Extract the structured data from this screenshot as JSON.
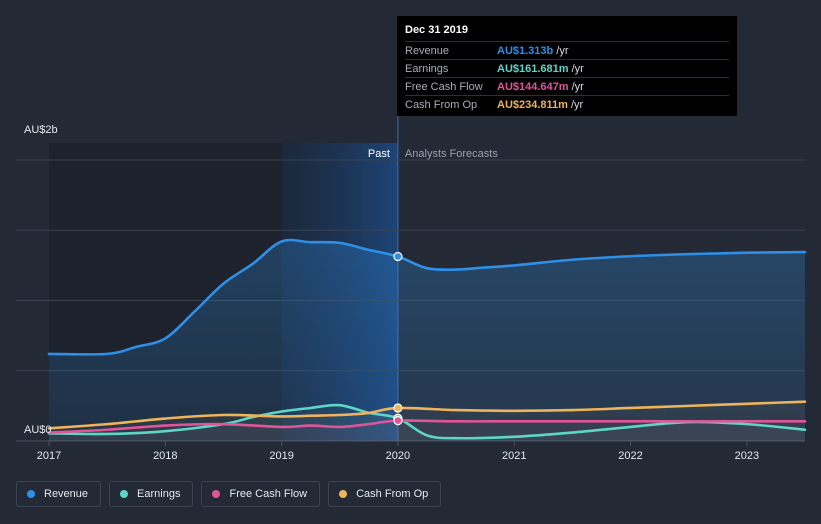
{
  "chart_data": {
    "type": "line",
    "y_axis": {
      "top_label": "AU$2b",
      "bottom_label": "AU$0",
      "ylim": [
        0,
        2.0
      ]
    },
    "x_axis": {
      "ticks": [
        "2017",
        "2018",
        "2019",
        "2020",
        "2021",
        "2022",
        "2023"
      ],
      "xlim": [
        2017.0,
        2023.5
      ]
    },
    "regions": {
      "past_label": "Past",
      "forecast_label": "Analysts Forecasts",
      "past_highlight": [
        2019.0,
        2020.0
      ],
      "split_at": 2020.0
    },
    "series": [
      {
        "name": "Revenue",
        "color": "#2f8fe6",
        "area": true,
        "points": [
          [
            2017.0,
            0.62
          ],
          [
            2017.5,
            0.62
          ],
          [
            2017.75,
            0.67
          ],
          [
            2018.0,
            0.73
          ],
          [
            2018.25,
            0.92
          ],
          [
            2018.5,
            1.12
          ],
          [
            2018.75,
            1.26
          ],
          [
            2019.0,
            1.42
          ],
          [
            2019.25,
            1.415
          ],
          [
            2019.5,
            1.41
          ],
          [
            2019.75,
            1.36
          ],
          [
            2020.0,
            1.313
          ],
          [
            2020.25,
            1.23
          ],
          [
            2020.5,
            1.22
          ],
          [
            2020.75,
            1.235
          ],
          [
            2021.0,
            1.25
          ],
          [
            2021.5,
            1.29
          ],
          [
            2022.0,
            1.315
          ],
          [
            2022.5,
            1.33
          ],
          [
            2023.0,
            1.34
          ],
          [
            2023.5,
            1.345
          ]
        ]
      },
      {
        "name": "Earnings",
        "color": "#5ed6c7",
        "area": false,
        "points": [
          [
            2017.0,
            0.055
          ],
          [
            2017.5,
            0.05
          ],
          [
            2018.0,
            0.07
          ],
          [
            2018.5,
            0.12
          ],
          [
            2018.75,
            0.17
          ],
          [
            2019.0,
            0.21
          ],
          [
            2019.25,
            0.235
          ],
          [
            2019.5,
            0.255
          ],
          [
            2019.75,
            0.2
          ],
          [
            2020.0,
            0.162
          ],
          [
            2020.25,
            0.04
          ],
          [
            2020.5,
            0.02
          ],
          [
            2021.0,
            0.03
          ],
          [
            2021.5,
            0.06
          ],
          [
            2022.0,
            0.1
          ],
          [
            2022.5,
            0.135
          ],
          [
            2023.0,
            0.12
          ],
          [
            2023.5,
            0.08
          ]
        ]
      },
      {
        "name": "Free Cash Flow",
        "color": "#e0559a",
        "area": false,
        "points": [
          [
            2017.0,
            0.06
          ],
          [
            2017.5,
            0.08
          ],
          [
            2018.0,
            0.11
          ],
          [
            2018.5,
            0.12
          ],
          [
            2019.0,
            0.1
          ],
          [
            2019.25,
            0.11
          ],
          [
            2019.5,
            0.1
          ],
          [
            2019.75,
            0.12
          ],
          [
            2020.0,
            0.145
          ],
          [
            2020.5,
            0.14
          ],
          [
            2021.0,
            0.14
          ],
          [
            2021.5,
            0.14
          ],
          [
            2022.0,
            0.14
          ],
          [
            2022.5,
            0.14
          ],
          [
            2023.0,
            0.14
          ],
          [
            2023.5,
            0.14
          ]
        ]
      },
      {
        "name": "Cash From Op",
        "color": "#eeb35b",
        "area": false,
        "points": [
          [
            2017.0,
            0.09
          ],
          [
            2017.5,
            0.12
          ],
          [
            2018.0,
            0.16
          ],
          [
            2018.5,
            0.185
          ],
          [
            2019.0,
            0.175
          ],
          [
            2019.25,
            0.18
          ],
          [
            2019.5,
            0.185
          ],
          [
            2019.75,
            0.2
          ],
          [
            2020.0,
            0.235
          ],
          [
            2020.5,
            0.22
          ],
          [
            2021.0,
            0.215
          ],
          [
            2021.5,
            0.22
          ],
          [
            2022.0,
            0.235
          ],
          [
            2022.5,
            0.25
          ],
          [
            2023.0,
            0.265
          ],
          [
            2023.5,
            0.28
          ]
        ]
      }
    ]
  },
  "tooltip": {
    "date": "Dec 31 2019",
    "unit": "/yr",
    "rows": [
      {
        "name": "Revenue",
        "value": "AU$1.313b",
        "color": "#2f8fe6"
      },
      {
        "name": "Earnings",
        "value": "AU$161.681m",
        "color": "#5ed6c7"
      },
      {
        "name": "Free Cash Flow",
        "value": "AU$144.647m",
        "color": "#e0559a"
      },
      {
        "name": "Cash From Op",
        "value": "AU$234.811m",
        "color": "#eeb35b"
      }
    ]
  },
  "legend": [
    {
      "label": "Revenue",
      "color": "#2f8fe6"
    },
    {
      "label": "Earnings",
      "color": "#5ed6c7"
    },
    {
      "label": "Free Cash Flow",
      "color": "#e0559a"
    },
    {
      "label": "Cash From Op",
      "color": "#eeb35b"
    }
  ]
}
